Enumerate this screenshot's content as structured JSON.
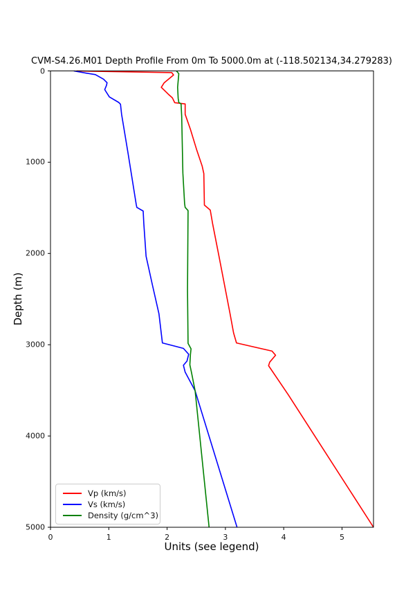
{
  "title": "CVM-S4.26.M01 Depth Profile From 0m To 5000.0m at (-118.502134,34.279283)",
  "axes": {
    "xlabel": "Units (see legend)",
    "ylabel": "Depth (m)",
    "x_ticks": [
      "0",
      "1",
      "2",
      "3",
      "4",
      "5"
    ],
    "y_ticks": [
      "0",
      "1000",
      "2000",
      "3000",
      "4000",
      "5000"
    ],
    "xlim": [
      0,
      5.54
    ],
    "ylim_depth_m": [
      0,
      5000
    ]
  },
  "legend": {
    "position": "lower left",
    "items": [
      {
        "label": "Vp (km/s)",
        "color": "#ff0000"
      },
      {
        "label": "Vs (km/s)",
        "color": "#0000ff"
      },
      {
        "label": "Density (g/cm^3)",
        "color": "#008000"
      }
    ]
  },
  "colors": {
    "background": "#ffffff",
    "spine": "#000000",
    "vp": "#ff0000",
    "vs": "#0000ff",
    "density": "#008000"
  },
  "chart_data": {
    "type": "line",
    "title": "CVM-S4.26.M01 Depth Profile From 0m To 5000.0m at (-118.502134,34.279283)",
    "xlabel": "Units (see legend)",
    "ylabel": "Depth (m)",
    "x_range": [
      0,
      5.54
    ],
    "depth_range_m": [
      0,
      5000
    ],
    "grid": false,
    "legend_position": "lower left",
    "orientation": "value_vs_depth (depth increases downward)",
    "series": [
      {
        "name": "Vp (km/s)",
        "color": "#ff0000",
        "points_value_depth": [
          [
            0.45,
            0
          ],
          [
            2.08,
            18
          ],
          [
            2.11,
            45
          ],
          [
            1.95,
            130
          ],
          [
            1.9,
            180
          ],
          [
            2.02,
            255
          ],
          [
            2.09,
            295
          ],
          [
            2.13,
            348
          ],
          [
            2.31,
            362
          ],
          [
            2.31,
            475
          ],
          [
            2.4,
            640
          ],
          [
            2.51,
            870
          ],
          [
            2.6,
            1040
          ],
          [
            2.63,
            1125
          ],
          [
            2.64,
            1470
          ],
          [
            2.74,
            1525
          ],
          [
            2.78,
            1670
          ],
          [
            2.89,
            2030
          ],
          [
            3.08,
            2660
          ],
          [
            3.14,
            2870
          ],
          [
            3.19,
            2980
          ],
          [
            3.8,
            3070
          ],
          [
            3.86,
            3115
          ],
          [
            3.76,
            3190
          ],
          [
            3.74,
            3230
          ],
          [
            3.91,
            3390
          ],
          [
            4.08,
            3550
          ],
          [
            5.54,
            5000
          ]
        ]
      },
      {
        "name": "Vs (km/s)",
        "color": "#0000ff",
        "points_value_depth": [
          [
            0.4,
            0
          ],
          [
            0.62,
            25
          ],
          [
            0.77,
            40
          ],
          [
            0.91,
            90
          ],
          [
            0.97,
            130
          ],
          [
            0.96,
            160
          ],
          [
            0.93,
            205
          ],
          [
            1.01,
            285
          ],
          [
            1.17,
            345
          ],
          [
            1.2,
            365
          ],
          [
            1.22,
            475
          ],
          [
            1.33,
            900
          ],
          [
            1.47,
            1460
          ],
          [
            1.48,
            1495
          ],
          [
            1.59,
            1535
          ],
          [
            1.6,
            1670
          ],
          [
            1.64,
            2030
          ],
          [
            1.75,
            2350
          ],
          [
            1.86,
            2660
          ],
          [
            1.92,
            2980
          ],
          [
            2.28,
            3040
          ],
          [
            2.37,
            3105
          ],
          [
            2.34,
            3180
          ],
          [
            2.28,
            3225
          ],
          [
            2.31,
            3300
          ],
          [
            2.48,
            3505
          ],
          [
            3.2,
            5000
          ]
        ]
      },
      {
        "name": "Density (g/cm^3)",
        "color": "#008000",
        "points_value_depth": [
          [
            2.16,
            0
          ],
          [
            2.2,
            30
          ],
          [
            2.18,
            180
          ],
          [
            2.19,
            300
          ],
          [
            2.2,
            345
          ],
          [
            2.24,
            362
          ],
          [
            2.25,
            500
          ],
          [
            2.27,
            1120
          ],
          [
            2.3,
            1455
          ],
          [
            2.31,
            1495
          ],
          [
            2.36,
            1530
          ],
          [
            2.35,
            2400
          ],
          [
            2.36,
            2985
          ],
          [
            2.41,
            3045
          ],
          [
            2.4,
            3110
          ],
          [
            2.39,
            3220
          ],
          [
            2.42,
            3310
          ],
          [
            2.48,
            3505
          ],
          [
            2.72,
            5000
          ]
        ]
      }
    ]
  }
}
